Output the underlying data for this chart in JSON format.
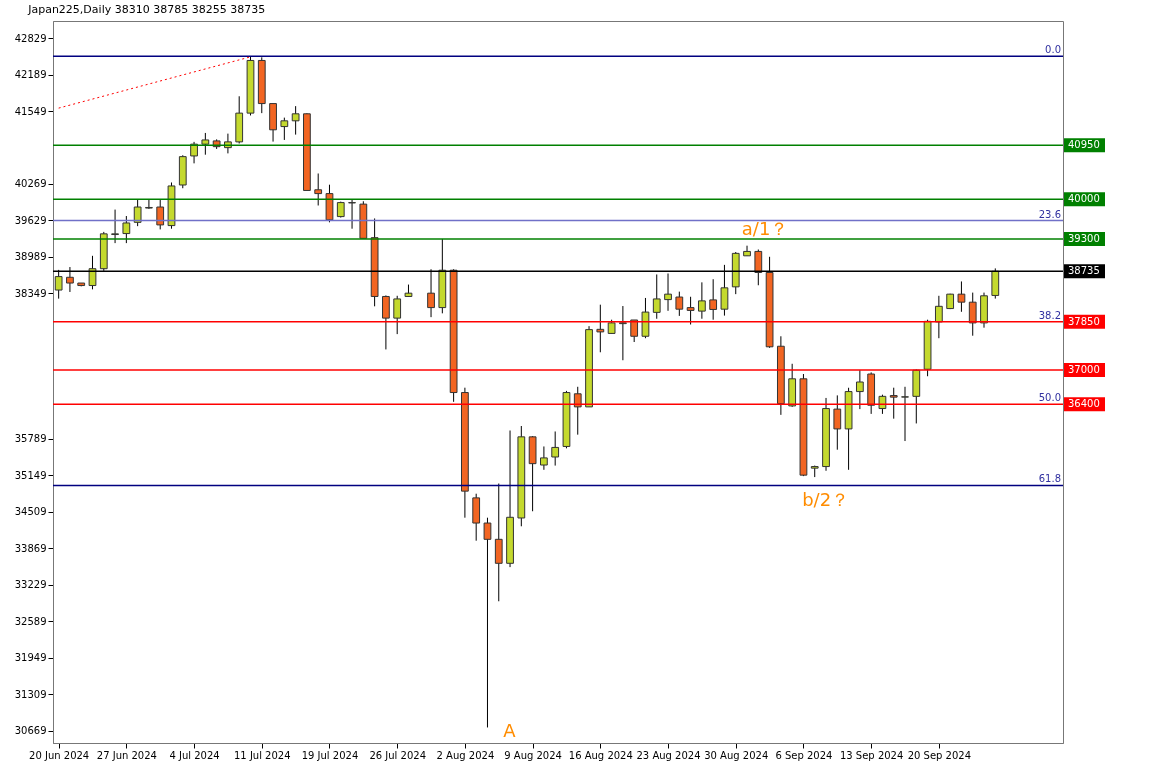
{
  "chart_data": {
    "type": "candlestick",
    "title": "Japan225,Daily  38310 38785 38255 38735",
    "categories": [
      "20 Jun 2024",
      null,
      null,
      null,
      null,
      null,
      "27 Jun 2024",
      null,
      null,
      null,
      null,
      null,
      "4 Jul 2024",
      null,
      null,
      null,
      null,
      null,
      "11 Jul 2024",
      null,
      null,
      null,
      null,
      null,
      "19 Jul 2024",
      null,
      null,
      null,
      null,
      null,
      "26 Jul 2024",
      null,
      null,
      null,
      null,
      null,
      "2 Aug 2024",
      null,
      null,
      null,
      null,
      null,
      "9 Aug 2024",
      null,
      null,
      null,
      null,
      null,
      "16 Aug 2024",
      null,
      null,
      null,
      null,
      null,
      "23 Aug 2024",
      null,
      null,
      null,
      null,
      null,
      "30 Aug 2024",
      null,
      null,
      null,
      null,
      null,
      "6 Sep 2024",
      null,
      null,
      null,
      null,
      null,
      "13 Sep 2024",
      null,
      null,
      null,
      null,
      null,
      "20 Sep 2024",
      null,
      null,
      null,
      null,
      null
    ],
    "ohlc": [
      [
        38405,
        38759,
        38254,
        38641
      ],
      [
        38629,
        38809,
        38371,
        38528
      ],
      [
        38528,
        38528,
        38470,
        38484
      ],
      [
        38484,
        39006,
        38417,
        38780
      ],
      [
        38780,
        39426,
        38742,
        39392
      ],
      [
        39380,
        39818,
        39229,
        39392
      ],
      [
        39397,
        39705,
        39229,
        39583
      ],
      [
        39594,
        39986,
        39527,
        39863
      ],
      [
        39845,
        39986,
        39830,
        39855
      ],
      [
        39863,
        39986,
        39470,
        39549
      ],
      [
        39537,
        40294,
        39482,
        40233
      ],
      [
        40250,
        40772,
        40193,
        40748
      ],
      [
        40760,
        41007,
        40630,
        40967
      ],
      [
        40967,
        41164,
        40782,
        41041
      ],
      [
        41024,
        41051,
        40883,
        40923
      ],
      [
        40906,
        41152,
        40805,
        41007
      ],
      [
        41007,
        41808,
        40979,
        41512
      ],
      [
        41512,
        42509,
        41471,
        42437
      ],
      [
        42437,
        42492,
        41512,
        41680
      ],
      [
        41680,
        41680,
        41012,
        41219
      ],
      [
        41276,
        41433,
        41041,
        41377
      ],
      [
        41377,
        41635,
        41135,
        41500
      ],
      [
        41500,
        41510,
        40154,
        40154
      ],
      [
        40166,
        40452,
        39890,
        40099
      ],
      [
        40099,
        40255,
        39594,
        39638
      ],
      [
        39695,
        39958,
        39678,
        39941
      ],
      [
        39935,
        39986,
        39482,
        39941
      ],
      [
        39914,
        39964,
        39313,
        39313
      ],
      [
        39325,
        39662,
        38119,
        38292
      ],
      [
        38292,
        38310,
        37362,
        37912
      ],
      [
        37912,
        38304,
        37631,
        38249
      ],
      [
        38292,
        38501,
        38292,
        38350
      ],
      null,
      [
        38350,
        38770,
        37929,
        38097
      ],
      [
        38097,
        39302,
        37996,
        38753
      ],
      [
        38753,
        38770,
        36442,
        36605
      ],
      [
        36605,
        36690,
        34407,
        34873
      ],
      [
        34755,
        34828,
        34003,
        34313
      ],
      [
        34313,
        34407,
        30723,
        34027
      ],
      [
        34027,
        35007,
        32939,
        33606
      ],
      [
        33606,
        35938,
        33539,
        34414
      ],
      [
        34402,
        36017,
        34256,
        35827
      ],
      [
        35827,
        35840,
        34520,
        35356
      ],
      [
        35332,
        35658,
        35248,
        35457
      ],
      [
        35473,
        35921,
        35322,
        35641
      ],
      [
        35658,
        36634,
        35625,
        36605
      ],
      [
        36583,
        36706,
        35865,
        36353
      ],
      [
        36353,
        37771,
        36353,
        37710
      ],
      [
        37715,
        38148,
        37312,
        37670
      ],
      [
        37643,
        37884,
        37643,
        37828
      ],
      [
        37815,
        38124,
        37172,
        37830
      ],
      [
        37879,
        37879,
        37492,
        37593
      ],
      [
        37593,
        38266,
        37559,
        38018
      ],
      [
        38013,
        38679,
        37901,
        38249
      ],
      [
        38237,
        38696,
        38040,
        38333
      ],
      [
        38282,
        38377,
        37951,
        38069
      ],
      [
        38097,
        38287,
        37800,
        38047
      ],
      [
        38035,
        38540,
        37901,
        38215
      ],
      [
        38232,
        38595,
        37884,
        38064
      ],
      [
        38069,
        38847,
        37956,
        38444
      ],
      [
        38461,
        39073,
        38333,
        39049
      ],
      [
        39006,
        39184,
        39006,
        39083
      ],
      [
        39083,
        39117,
        38489,
        38713
      ],
      [
        38713,
        38989,
        37390,
        37408
      ],
      [
        37418,
        37593,
        36213,
        36409
      ],
      [
        36370,
        37110,
        36353,
        36846
      ],
      [
        36846,
        36930,
        35137,
        35154
      ],
      [
        35277,
        35322,
        35120,
        35305
      ],
      [
        35305,
        36510,
        35231,
        36324
      ],
      [
        36314,
        36555,
        35601,
        35966
      ],
      [
        35966,
        36689,
        35248,
        36622
      ],
      [
        36622,
        36997,
        36314,
        36790
      ],
      [
        36930,
        36959,
        36230,
        36382
      ],
      [
        36324,
        36567,
        36230,
        36538
      ],
      [
        36552,
        36690,
        36146,
        36524
      ],
      [
        36525,
        36706,
        35753,
        36530
      ],
      [
        36538,
        37010,
        36062,
        36997
      ],
      [
        37014,
        37884,
        36891,
        37855
      ],
      [
        37845,
        38304,
        37559,
        38119
      ],
      [
        38080,
        38340,
        38070,
        38333
      ],
      [
        38333,
        38556,
        38023,
        38192
      ],
      [
        38192,
        38360,
        37603,
        37828
      ],
      [
        37828,
        38360,
        37744,
        38304
      ],
      [
        38310,
        38785,
        38255,
        38735
      ]
    ],
    "colors": [
      "#c4d92e",
      "#f26522",
      "#f26522",
      "#c4d92e",
      "#c4d92e",
      "#c4d92e",
      "#c4d92e",
      "#c4d92e",
      "#c4d92e",
      "#f26522",
      "#c4d92e",
      "#c4d92e",
      "#c4d92e",
      "#c4d92e",
      "#f26522",
      "#c4d92e",
      "#c4d92e",
      "#c4d92e",
      "#f26522",
      "#f26522",
      "#c4d92e",
      "#c4d92e",
      "#f26522",
      "#f26522",
      "#f26522",
      "#c4d92e",
      "#c4d92e",
      "#f26522",
      "#f26522",
      "#f26522",
      "#c4d92e",
      "#c4d92e",
      null,
      "#f26522",
      "#c4d92e",
      "#f26522",
      "#f26522",
      "#f26522",
      "#f26522",
      "#f26522",
      "#c4d92e",
      "#c4d92e",
      "#f26522",
      "#c4d92e",
      "#c4d92e",
      "#c4d92e",
      "#f26522",
      "#c4d92e",
      "#f26522",
      "#c4d92e",
      "#c4d92e",
      "#f26522",
      "#c4d92e",
      "#c4d92e",
      "#c4d92e",
      "#f26522",
      "#f26522",
      "#c4d92e",
      "#f26522",
      "#c4d92e",
      "#c4d92e",
      "#c4d92e",
      "#f26522",
      "#f26522",
      "#f26522",
      "#c4d92e",
      "#f26522",
      "#c4d92e",
      "#c4d92e",
      "#f26522",
      "#c4d92e",
      "#c4d92e",
      "#f26522",
      "#c4d92e",
      "#f26522",
      "#c4d92e",
      "#c4d92e",
      "#c4d92e",
      "#c4d92e",
      "#c4d92e",
      "#f26522",
      "#f26522",
      "#c4d92e",
      "#c4d92e"
    ],
    "series": [
      {
        "type": "line",
        "color": "#ff0000",
        "line_style": "dotted",
        "values": [
          41600,
          null,
          null,
          null,
          null,
          null,
          null,
          null,
          null,
          null,
          null,
          null,
          null,
          null,
          null,
          null,
          null,
          42500,
          null,
          null,
          null,
          null,
          null,
          null,
          null,
          null,
          null,
          null,
          null,
          null,
          null,
          null,
          null,
          null,
          null,
          null,
          null,
          null,
          null,
          null,
          null,
          null,
          null,
          null,
          null,
          null,
          null,
          null,
          null,
          null,
          null,
          null,
          null,
          null,
          null,
          null,
          null,
          null,
          null,
          null,
          null,
          null,
          null,
          null,
          null,
          null,
          null,
          null,
          null,
          null,
          null,
          null,
          null,
          null,
          null,
          null,
          null,
          null,
          null,
          null,
          null,
          null,
          null,
          null
        ]
      }
    ],
    "ylim": [
      30450,
      43130
    ],
    "yticks": [
      42829,
      42189,
      41549,
      40269,
      39629,
      38989,
      38349,
      35789,
      35149,
      34509,
      33869,
      33229,
      32589,
      31949,
      31309,
      30669
    ],
    "ref_lines": [
      {
        "axis": "y",
        "value": 42509,
        "label": null,
        "color": "#000080"
      },
      {
        "axis": "y",
        "value": 40950,
        "label": "40950",
        "color": "#008000"
      },
      {
        "axis": "y",
        "value": 40000,
        "label": "40000",
        "color": "#008000"
      },
      {
        "axis": "y",
        "value": 39626,
        "label": null,
        "color": "#7070c8"
      },
      {
        "axis": "y",
        "value": 39300,
        "label": "39300",
        "color": "#008000"
      },
      {
        "axis": "y",
        "value": 38735,
        "label": "38735",
        "color": "#000000"
      },
      {
        "axis": "y",
        "value": 37850,
        "label": "37850",
        "color": "#ff0000"
      },
      {
        "axis": "y",
        "value": 37000,
        "label": "37000",
        "color": "#ff0000"
      },
      {
        "axis": "y",
        "value": 36400,
        "label": "36400",
        "color": "#ff0000"
      },
      {
        "axis": "y",
        "value": 34974,
        "label": null,
        "color": "#000080"
      }
    ],
    "annotations": [
      "a/1？",
      "b/2？",
      "A",
      {
        "text": "0.0",
        "y": 42509
      },
      {
        "text": "23.6",
        "y": 39626
      },
      {
        "text": "38.2",
        "y": 37850
      },
      {
        "text": "50.0",
        "y": 36400
      },
      {
        "text": "61.8",
        "y": 34974
      }
    ]
  }
}
